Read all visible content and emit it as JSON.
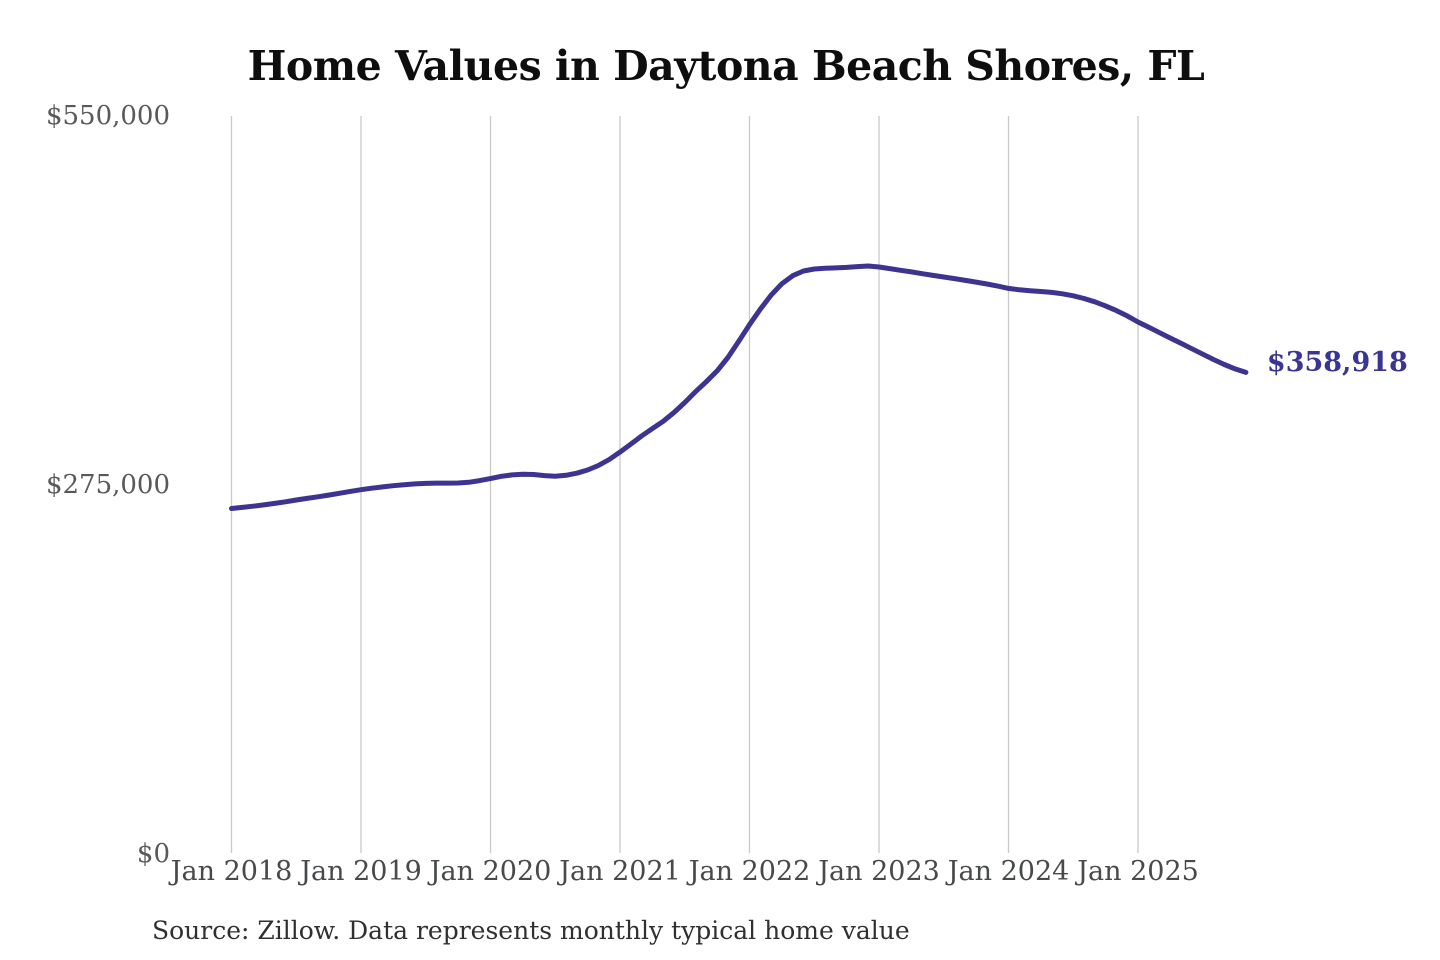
{
  "chart_data": {
    "type": "line",
    "title": "Home Values in Daytona Beach Shores, FL",
    "series_name": "Monthly typical home value",
    "xlabel": "",
    "ylabel": "",
    "ylim": [
      0,
      550000
    ],
    "grid": "vertical-only",
    "legend": "none",
    "line_color": "#3c3490",
    "grid_color": "#c9c9c9",
    "annotation": {
      "text": "$358,918",
      "position": "line-end"
    },
    "source": "Source: Zillow. Data represents monthly typical home value",
    "y_ticks": [
      {
        "value": 0,
        "label": "$0"
      },
      {
        "value": 275000,
        "label": "$275,000"
      },
      {
        "value": 550000,
        "label": "$550,000"
      }
    ],
    "x_ticks": [
      "Jan 2018",
      "Jan 2019",
      "Jan 2020",
      "Jan 2021",
      "Jan 2022",
      "Jan 2023",
      "Jan 2024",
      "Jan 2025"
    ],
    "x": [
      "Jan 2018",
      "Feb 2018",
      "Mar 2018",
      "Apr 2018",
      "May 2018",
      "Jun 2018",
      "Jul 2018",
      "Aug 2018",
      "Sep 2018",
      "Oct 2018",
      "Nov 2018",
      "Dec 2018",
      "Jan 2019",
      "Feb 2019",
      "Mar 2019",
      "Apr 2019",
      "May 2019",
      "Jun 2019",
      "Jul 2019",
      "Aug 2019",
      "Sep 2019",
      "Oct 2019",
      "Nov 2019",
      "Dec 2019",
      "Jan 2020",
      "Feb 2020",
      "Mar 2020",
      "Apr 2020",
      "May 2020",
      "Jun 2020",
      "Jul 2020",
      "Aug 2020",
      "Sep 2020",
      "Oct 2020",
      "Nov 2020",
      "Dec 2020",
      "Jan 2021",
      "Feb 2021",
      "Mar 2021",
      "Apr 2021",
      "May 2021",
      "Jun 2021",
      "Jul 2021",
      "Aug 2021",
      "Sep 2021",
      "Oct 2021",
      "Nov 2021",
      "Dec 2021",
      "Jan 2022",
      "Feb 2022",
      "Mar 2022",
      "Apr 2022",
      "May 2022",
      "Jun 2022",
      "Jul 2022",
      "Aug 2022",
      "Sep 2022",
      "Oct 2022",
      "Nov 2022",
      "Dec 2022",
      "Jan 2023",
      "Feb 2023",
      "Mar 2023",
      "Apr 2023",
      "May 2023",
      "Jun 2023",
      "Jul 2023",
      "Aug 2023",
      "Sep 2023",
      "Oct 2023",
      "Nov 2023",
      "Dec 2023",
      "Jan 2024",
      "Feb 2024",
      "Mar 2024",
      "Apr 2024",
      "May 2024",
      "Jun 2024",
      "Jul 2024",
      "Aug 2024",
      "Sep 2024",
      "Oct 2024",
      "Nov 2024",
      "Dec 2024",
      "Jan 2025",
      "Feb 2025",
      "Mar 2025",
      "Apr 2025",
      "May 2025",
      "Jun 2025",
      "Jul 2025",
      "Aug 2025",
      "Sep 2025",
      "Oct 2025",
      "Nov 2025"
    ],
    "values": [
      257500,
      258300,
      259200,
      260200,
      261300,
      262500,
      263800,
      265000,
      266200,
      267500,
      268800,
      270200,
      271500,
      272600,
      273600,
      274500,
      275200,
      275800,
      276200,
      276400,
      276400,
      276500,
      277000,
      278300,
      279800,
      281500,
      282500,
      283000,
      282800,
      282000,
      281500,
      282200,
      283800,
      286200,
      289500,
      294000,
      299500,
      305500,
      311500,
      317000,
      322500,
      329000,
      336500,
      344500,
      352000,
      360000,
      370000,
      382000,
      394500,
      406000,
      416500,
      425000,
      431000,
      434500,
      436000,
      436500,
      436800,
      437200,
      437800,
      438200,
      437500,
      436300,
      435000,
      433800,
      432500,
      431200,
      430000,
      428800,
      427500,
      426200,
      424800,
      423200,
      421500,
      420500,
      419800,
      419200,
      418500,
      417500,
      416000,
      414000,
      411500,
      408500,
      405000,
      401000,
      396500,
      392500,
      388500,
      384500,
      380500,
      376500,
      372500,
      368500,
      364800,
      361500,
      358918
    ]
  }
}
